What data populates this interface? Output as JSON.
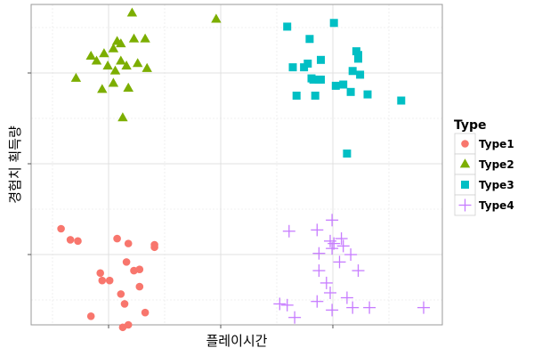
{
  "chart_data": {
    "type": "scatter",
    "title": "",
    "xlabel": "플레이시간",
    "ylabel": "경험치 획득량",
    "x_tick_labels": [],
    "y_tick_labels": [],
    "xlim": [
      0,
      11
    ],
    "ylim": [
      0,
      13
    ],
    "grid": true,
    "legend": {
      "title": "Type",
      "placement": "right"
    },
    "series": [
      {
        "name": "Type1",
        "color": "#F8766D",
        "marker": "circle",
        "points": [
          [
            0.8,
            3.9
          ],
          [
            1.05,
            3.45
          ],
          [
            1.25,
            3.4
          ],
          [
            1.85,
            2.1
          ],
          [
            1.9,
            1.8
          ],
          [
            2.1,
            1.8
          ],
          [
            1.6,
            0.35
          ],
          [
            2.3,
            3.5
          ],
          [
            2.4,
            1.25
          ],
          [
            2.5,
            0.85
          ],
          [
            2.55,
            2.55
          ],
          [
            2.6,
            3.3
          ],
          [
            2.75,
            2.2
          ],
          [
            2.9,
            2.25
          ],
          [
            2.9,
            1.55
          ],
          [
            3.05,
            0.5
          ],
          [
            3.3,
            3.25
          ],
          [
            3.3,
            3.15
          ],
          [
            2.45,
            -0.1
          ],
          [
            2.6,
            0.0
          ]
        ]
      },
      {
        "name": "Type2",
        "color": "#7CAE00",
        "marker": "triangle",
        "points": [
          [
            1.2,
            10.0
          ],
          [
            1.6,
            10.9
          ],
          [
            1.75,
            10.7
          ],
          [
            1.9,
            9.55
          ],
          [
            2.05,
            10.5
          ],
          [
            1.95,
            11.0
          ],
          [
            2.2,
            11.2
          ],
          [
            2.25,
            10.3
          ],
          [
            2.3,
            11.5
          ],
          [
            2.4,
            11.4
          ],
          [
            2.2,
            9.8
          ],
          [
            2.4,
            10.7
          ],
          [
            2.55,
            10.5
          ],
          [
            2.6,
            9.6
          ],
          [
            2.7,
            12.65
          ],
          [
            2.75,
            11.6
          ],
          [
            2.85,
            10.6
          ],
          [
            3.05,
            11.6
          ],
          [
            3.1,
            10.4
          ],
          [
            2.6,
            9.6
          ],
          [
            2.45,
            8.4
          ],
          [
            4.95,
            12.4
          ]
        ]
      },
      {
        "name": "Type3",
        "color": "#00BFC4",
        "marker": "square",
        "points": [
          [
            6.85,
            12.1
          ],
          [
            7.0,
            10.45
          ],
          [
            7.1,
            9.3
          ],
          [
            7.3,
            10.45
          ],
          [
            7.4,
            10.6
          ],
          [
            7.5,
            10.0
          ],
          [
            7.55,
            9.95
          ],
          [
            7.6,
            9.3
          ],
          [
            7.45,
            11.6
          ],
          [
            7.7,
            9.95
          ],
          [
            7.75,
            10.75
          ],
          [
            7.75,
            9.95
          ],
          [
            8.1,
            12.25
          ],
          [
            8.15,
            9.7
          ],
          [
            8.35,
            9.75
          ],
          [
            8.55,
            9.45
          ],
          [
            8.6,
            10.3
          ],
          [
            8.7,
            11.1
          ],
          [
            8.75,
            10.8
          ],
          [
            8.75,
            10.95
          ],
          [
            8.8,
            10.15
          ],
          [
            9.0,
            9.35
          ],
          [
            9.9,
            9.1
          ],
          [
            8.45,
            6.95
          ]
        ]
      },
      {
        "name": "Type4",
        "color": "#C77CFF",
        "marker": "plus",
        "points": [
          [
            6.9,
            3.8
          ],
          [
            7.65,
            3.85
          ],
          [
            7.7,
            2.9
          ],
          [
            7.7,
            2.2
          ],
          [
            8.05,
            3.1
          ],
          [
            8.0,
            3.4
          ],
          [
            8.1,
            3.3
          ],
          [
            8.05,
            4.25
          ],
          [
            8.35,
            3.2
          ],
          [
            8.3,
            3.5
          ],
          [
            8.25,
            2.55
          ],
          [
            8.55,
            2.85
          ],
          [
            8.75,
            2.2
          ],
          [
            7.9,
            1.7
          ],
          [
            8.0,
            1.3
          ],
          [
            6.65,
            0.85
          ],
          [
            6.85,
            0.8
          ],
          [
            7.05,
            0.3
          ],
          [
            7.65,
            0.95
          ],
          [
            8.05,
            0.6
          ],
          [
            8.45,
            1.1
          ],
          [
            8.6,
            0.7
          ],
          [
            9.05,
            0.7
          ],
          [
            10.5,
            0.7
          ]
        ]
      }
    ]
  }
}
